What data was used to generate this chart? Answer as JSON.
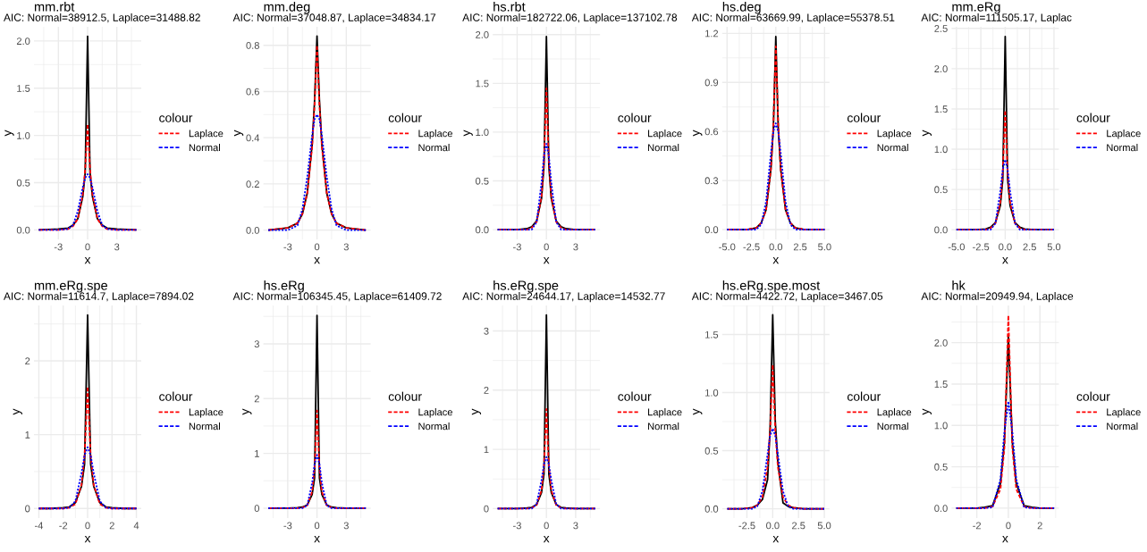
{
  "chart_data": [
    {
      "type": "line",
      "title": "mm.rbt",
      "subtitle": "AIC: Normal=38912.5, Laplace=31488.82",
      "xlabel": "x",
      "ylabel": "y",
      "legend": "right",
      "legend_title": "colour",
      "grid": true,
      "xlim": [
        -5.5,
        5.5
      ],
      "ylim": [
        -0.1,
        2.15
      ],
      "xticks": [
        -3,
        0,
        3
      ],
      "yticks": [
        {
          "value": 0,
          "label": "0.0"
        },
        {
          "value": 0.5,
          "label": "0.5"
        },
        {
          "value": 1,
          "label": "1.0"
        },
        {
          "value": 1.5,
          "label": "1.5"
        },
        {
          "value": 2,
          "label": "2.0"
        }
      ],
      "x": [
        -5,
        -3,
        -2,
        -1.5,
        -1,
        -0.5,
        -0.25,
        0,
        0.25,
        0.5,
        1,
        1.5,
        2,
        3,
        5
      ],
      "series": [
        {
          "color": "#000000",
          "line_style": "solid",
          "values": [
            0,
            0.01,
            0.02,
            0.05,
            0.12,
            0.35,
            0.6,
            2.05,
            0.6,
            0.35,
            0.12,
            0.05,
            0.02,
            0.01,
            0
          ]
        },
        {
          "name": "Laplace",
          "color": "#ff0000",
          "line_style": "dashed",
          "values": [
            0,
            0,
            0.01,
            0.04,
            0.12,
            0.37,
            0.64,
            1.12,
            0.64,
            0.37,
            0.12,
            0.04,
            0.01,
            0,
            0
          ]
        },
        {
          "name": "Normal",
          "color": "#0000ff",
          "line_style": "dashed",
          "values": [
            0,
            0,
            0.01,
            0.05,
            0.2,
            0.45,
            0.55,
            0.59,
            0.55,
            0.45,
            0.2,
            0.05,
            0.01,
            0,
            0
          ]
        }
      ]
    },
    {
      "type": "line",
      "title": "mm.deg",
      "subtitle": "AIC: Normal=37048.87, Laplace=34834.17",
      "xlabel": "x",
      "ylabel": "y",
      "legend": "right",
      "legend_title": "colour",
      "grid": true,
      "xlim": [
        -5.5,
        5.5
      ],
      "ylim": [
        -0.04,
        0.88
      ],
      "xticks": [
        -3,
        0,
        3
      ],
      "yticks": [
        {
          "value": 0,
          "label": "0.0"
        },
        {
          "value": 0.2,
          "label": "0.2"
        },
        {
          "value": 0.4,
          "label": "0.4"
        },
        {
          "value": 0.6,
          "label": "0.6"
        },
        {
          "value": 0.8,
          "label": "0.8"
        }
      ],
      "x": [
        -5,
        -3,
        -2,
        -1.5,
        -1,
        -0.5,
        -0.25,
        0,
        0.25,
        0.5,
        1,
        1.5,
        2,
        3,
        5
      ],
      "series": [
        {
          "color": "#000000",
          "line_style": "solid",
          "values": [
            0,
            0.01,
            0.03,
            0.07,
            0.16,
            0.37,
            0.56,
            0.84,
            0.56,
            0.37,
            0.16,
            0.07,
            0.03,
            0.01,
            0
          ]
        },
        {
          "name": "Laplace",
          "color": "#ff0000",
          "line_style": "dashed",
          "values": [
            0,
            0.01,
            0.03,
            0.07,
            0.16,
            0.36,
            0.54,
            0.8,
            0.54,
            0.36,
            0.16,
            0.07,
            0.03,
            0.01,
            0
          ]
        },
        {
          "name": "Normal",
          "color": "#0000ff",
          "line_style": "dashed",
          "values": [
            0,
            0,
            0.02,
            0.09,
            0.23,
            0.41,
            0.48,
            0.5,
            0.48,
            0.41,
            0.23,
            0.09,
            0.02,
            0,
            0
          ]
        }
      ]
    },
    {
      "type": "line",
      "title": "hs.rbt",
      "subtitle": "AIC: Normal=182722.06, Laplace=137102.78",
      "xlabel": "x",
      "ylabel": "y",
      "legend": "right",
      "legend_title": "colour",
      "grid": true,
      "xlim": [
        -5.5,
        5.5
      ],
      "ylim": [
        -0.1,
        2.08
      ],
      "xticks": [
        -3,
        0,
        3
      ],
      "yticks": [
        {
          "value": 0,
          "label": "0.0"
        },
        {
          "value": 0.5,
          "label": "0.5"
        },
        {
          "value": 1,
          "label": "1.0"
        },
        {
          "value": 1.5,
          "label": "1.5"
        },
        {
          "value": 2,
          "label": "2.0"
        }
      ],
      "x": [
        -5,
        -3,
        -2,
        -1.5,
        -1,
        -0.5,
        -0.25,
        0,
        0.25,
        0.5,
        1,
        1.5,
        2,
        3,
        5
      ],
      "series": [
        {
          "color": "#000000",
          "line_style": "solid",
          "values": [
            0,
            0,
            0.01,
            0.03,
            0.09,
            0.32,
            0.65,
            1.98,
            0.65,
            0.32,
            0.09,
            0.03,
            0.01,
            0,
            0
          ]
        },
        {
          "name": "Laplace",
          "color": "#ff0000",
          "line_style": "dashed",
          "values": [
            0,
            0,
            0,
            0.02,
            0.08,
            0.34,
            0.7,
            1.45,
            0.7,
            0.34,
            0.08,
            0.02,
            0,
            0,
            0
          ]
        },
        {
          "name": "Normal",
          "color": "#0000ff",
          "line_style": "dashed",
          "values": [
            0,
            0,
            0,
            0,
            0.08,
            0.48,
            0.76,
            0.88,
            0.76,
            0.48,
            0.08,
            0,
            0,
            0,
            0
          ]
        }
      ]
    },
    {
      "type": "line",
      "title": "hs.deg",
      "subtitle": "AIC: Normal=63669.99, Laplace=55378.51",
      "xlabel": "x",
      "ylabel": "y",
      "legend": "right",
      "legend_title": "colour",
      "grid": true,
      "xlim": [
        -5.5,
        5.5
      ],
      "ylim": [
        -0.06,
        1.24
      ],
      "xticks": [
        {
          "value": -5,
          "label": "-5.0"
        },
        -2.5,
        {
          "value": 0,
          "label": "0.0"
        },
        2.5,
        {
          "value": 5,
          "label": "5.0"
        }
      ],
      "yticks": [
        {
          "value": 0,
          "label": "0.0"
        },
        0.3,
        0.6,
        0.9,
        1.2
      ],
      "x": [
        -5,
        -3,
        -2,
        -1.5,
        -1,
        -0.5,
        -0.25,
        0,
        0.25,
        0.5,
        1,
        1.5,
        2,
        3,
        5
      ],
      "series": [
        {
          "color": "#000000",
          "line_style": "solid",
          "values": [
            0,
            0,
            0.01,
            0.04,
            0.12,
            0.37,
            0.62,
            1.18,
            0.62,
            0.37,
            0.12,
            0.04,
            0.01,
            0,
            0
          ]
        },
        {
          "name": "Laplace",
          "color": "#ff0000",
          "line_style": "dashed",
          "values": [
            0,
            0,
            0.01,
            0.04,
            0.12,
            0.37,
            0.64,
            1.12,
            0.64,
            0.37,
            0.12,
            0.04,
            0.01,
            0,
            0
          ]
        },
        {
          "name": "Normal",
          "color": "#0000ff",
          "line_style": "dashed",
          "values": [
            0,
            0,
            0,
            0.03,
            0.17,
            0.47,
            0.6,
            0.65,
            0.6,
            0.47,
            0.17,
            0.03,
            0,
            0,
            0
          ]
        }
      ]
    },
    {
      "type": "line",
      "title": "mm.eRg",
      "subtitle": "AIC: Normal=111505.17, Laplac",
      "xlabel": "x",
      "ylabel": "y",
      "legend": "right",
      "legend_title": "colour",
      "grid": true,
      "xlim": [
        -5.5,
        5.5
      ],
      "ylim": [
        -0.12,
        2.52
      ],
      "xticks": [
        {
          "value": -5,
          "label": "-5.0"
        },
        -2.5,
        {
          "value": 0,
          "label": "0.0"
        },
        2.5,
        {
          "value": 5,
          "label": "5.0"
        }
      ],
      "yticks": [
        {
          "value": 0,
          "label": "0.0"
        },
        {
          "value": 0.5,
          "label": "0.5"
        },
        {
          "value": 1,
          "label": "1.0"
        },
        {
          "value": 1.5,
          "label": "1.5"
        },
        {
          "value": 2,
          "label": "2.0"
        },
        {
          "value": 2.5,
          "label": "2.5"
        }
      ],
      "x": [
        -5,
        -3,
        -2,
        -1.5,
        -1,
        -0.5,
        -0.25,
        0,
        0.25,
        0.5,
        1,
        1.5,
        2,
        3,
        5
      ],
      "series": [
        {
          "color": "#000000",
          "line_style": "solid",
          "values": [
            0,
            0,
            0.01,
            0.03,
            0.09,
            0.3,
            0.62,
            2.4,
            0.62,
            0.3,
            0.09,
            0.03,
            0.01,
            0,
            0
          ]
        },
        {
          "name": "Laplace",
          "color": "#ff0000",
          "line_style": "dashed",
          "values": [
            0,
            0,
            0,
            0.02,
            0.08,
            0.34,
            0.71,
            1.48,
            0.71,
            0.34,
            0.08,
            0.02,
            0,
            0,
            0
          ]
        },
        {
          "name": "Normal",
          "color": "#0000ff",
          "line_style": "dashed",
          "values": [
            0,
            0,
            0,
            0,
            0.08,
            0.48,
            0.75,
            0.87,
            0.75,
            0.48,
            0.08,
            0,
            0,
            0,
            0
          ]
        }
      ]
    },
    {
      "type": "line",
      "title": "mm.eRg.spe",
      "subtitle": "AIC: Normal=11614.7, Laplace=7894.02",
      "xlabel": "x",
      "ylabel": "y",
      "legend": "right",
      "legend_title": "colour",
      "grid": true,
      "xlim": [
        -4.4,
        4.4
      ],
      "ylim": [
        -0.13,
        2.75
      ],
      "xticks": [
        -4,
        -2,
        0,
        2,
        4
      ],
      "yticks": [
        0,
        1,
        2
      ],
      "x": [
        -4,
        -3,
        -2,
        -1.5,
        -1,
        -0.5,
        -0.25,
        0,
        0.25,
        0.5,
        1,
        1.5,
        2,
        3,
        4
      ],
      "series": [
        {
          "color": "#000000",
          "line_style": "solid",
          "values": [
            0,
            0,
            0.01,
            0.02,
            0.08,
            0.3,
            0.6,
            2.62,
            0.6,
            0.3,
            0.08,
            0.02,
            0.01,
            0,
            0
          ]
        },
        {
          "name": "Laplace",
          "color": "#ff0000",
          "line_style": "dashed",
          "values": [
            0,
            0,
            0,
            0.01,
            0.06,
            0.32,
            0.72,
            1.65,
            0.72,
            0.32,
            0.06,
            0.01,
            0,
            0,
            0
          ]
        },
        {
          "name": "Normal",
          "color": "#0000ff",
          "line_style": "dashed",
          "values": [
            0,
            0,
            0,
            0.01,
            0.1,
            0.48,
            0.72,
            0.83,
            0.72,
            0.48,
            0.1,
            0.01,
            0,
            0,
            0
          ]
        }
      ]
    },
    {
      "type": "line",
      "title": "hs.eRg",
      "subtitle": "AIC: Normal=106345.45, Laplace=61409.72",
      "xlabel": "x",
      "ylabel": "y",
      "legend": "right",
      "legend_title": "colour",
      "grid": true,
      "xlim": [
        -5.5,
        5.5
      ],
      "ylim": [
        -0.18,
        3.7
      ],
      "xticks": [
        -3,
        0,
        3
      ],
      "yticks": [
        0,
        1,
        2,
        3
      ],
      "x": [
        -5,
        -3,
        -2,
        -1.5,
        -1,
        -0.5,
        -0.25,
        0,
        0.25,
        0.5,
        1,
        1.5,
        2,
        3,
        5
      ],
      "series": [
        {
          "color": "#000000",
          "line_style": "solid",
          "values": [
            0,
            0,
            0.01,
            0.02,
            0.06,
            0.25,
            0.55,
            3.52,
            0.55,
            0.25,
            0.06,
            0.02,
            0.01,
            0,
            0
          ]
        },
        {
          "name": "Laplace",
          "color": "#ff0000",
          "line_style": "dashed",
          "values": [
            0,
            0,
            0,
            0.01,
            0.05,
            0.3,
            0.73,
            1.78,
            0.73,
            0.3,
            0.05,
            0.01,
            0,
            0,
            0
          ]
        },
        {
          "name": "Normal",
          "color": "#0000ff",
          "line_style": "dashed",
          "values": [
            0,
            0,
            0,
            0,
            0.05,
            0.46,
            0.81,
            0.97,
            0.81,
            0.46,
            0.05,
            0,
            0,
            0,
            0
          ]
        }
      ]
    },
    {
      "type": "line",
      "title": "hs.eRg.spe",
      "subtitle": "AIC: Normal=24644.17, Laplace=14532.77",
      "xlabel": "x",
      "ylabel": "y",
      "legend": "right",
      "legend_title": "colour",
      "grid": true,
      "xlim": [
        -5.5,
        5.5
      ],
      "ylim": [
        -0.16,
        3.43
      ],
      "xticks": [
        -3,
        0,
        3
      ],
      "yticks": [
        0,
        1,
        2,
        3
      ],
      "x": [
        -5,
        -3,
        -2,
        -1.5,
        -1,
        -0.5,
        -0.25,
        0,
        0.25,
        0.5,
        1,
        1.5,
        2,
        3,
        5
      ],
      "series": [
        {
          "color": "#000000",
          "line_style": "solid",
          "values": [
            0,
            0,
            0.01,
            0.02,
            0.07,
            0.27,
            0.58,
            3.27,
            0.58,
            0.27,
            0.07,
            0.02,
            0.01,
            0,
            0
          ]
        },
        {
          "name": "Laplace",
          "color": "#ff0000",
          "line_style": "dashed",
          "values": [
            0,
            0,
            0,
            0.01,
            0.06,
            0.31,
            0.73,
            1.68,
            0.73,
            0.31,
            0.06,
            0.01,
            0,
            0,
            0
          ]
        },
        {
          "name": "Normal",
          "color": "#0000ff",
          "line_style": "dashed",
          "values": [
            0,
            0,
            0,
            0,
            0.08,
            0.48,
            0.75,
            0.87,
            0.75,
            0.48,
            0.08,
            0,
            0,
            0,
            0
          ]
        }
      ]
    },
    {
      "type": "line",
      "title": "hs.eRg.spe.most",
      "subtitle": "AIC: Normal=4422.72, Laplace=3467.05",
      "xlabel": "x",
      "ylabel": "y",
      "legend": "right",
      "legend_title": "colour",
      "grid": true,
      "xlim": [
        -4.9,
        5.5
      ],
      "ylim": [
        -0.08,
        1.75
      ],
      "xticks": [
        -2.5,
        {
          "value": 0,
          "label": "0.0"
        },
        2.5,
        {
          "value": 5,
          "label": "5.0"
        }
      ],
      "yticks": [
        {
          "value": 0,
          "label": "0.0"
        },
        {
          "value": 0.5,
          "label": "0.5"
        },
        {
          "value": 1,
          "label": "1.0"
        },
        {
          "value": 1.5,
          "label": "1.5"
        }
      ],
      "x": [
        -4.4,
        -3,
        -2,
        -1.5,
        -1,
        -0.5,
        -0.25,
        0,
        0.25,
        0.5,
        1,
        1.5,
        2,
        3,
        5
      ],
      "series": [
        {
          "color": "#000000",
          "line_style": "solid",
          "values": [
            0,
            0,
            0.01,
            0.03,
            0.08,
            0.25,
            0.7,
            1.67,
            0.75,
            0.4,
            0.05,
            0.02,
            0.01,
            0,
            0
          ]
        },
        {
          "name": "Laplace",
          "color": "#ff0000",
          "line_style": "dashed",
          "values": [
            0,
            0,
            0.01,
            0.03,
            0.1,
            0.36,
            0.67,
            1.24,
            0.67,
            0.36,
            0.1,
            0.03,
            0.01,
            0,
            0
          ]
        },
        {
          "name": "Normal",
          "color": "#0000ff",
          "line_style": "dashed",
          "values": [
            0,
            0,
            0,
            0.02,
            0.15,
            0.47,
            0.63,
            0.69,
            0.63,
            0.47,
            0.15,
            0.02,
            0,
            0,
            0
          ]
        }
      ]
    },
    {
      "type": "line",
      "title": "hk",
      "subtitle": "AIC: Normal=20949.94, Laplace",
      "xlabel": "x",
      "ylabel": "y",
      "legend": "right",
      "legend_title": "colour",
      "grid": true,
      "xlim": [
        -3.6,
        3.2
      ],
      "ylim": [
        -0.12,
        2.45
      ],
      "xticks": [
        -2,
        0,
        2
      ],
      "yticks": [
        {
          "value": 0,
          "label": "0.0"
        },
        {
          "value": 0.5,
          "label": "0.5"
        },
        {
          "value": 1,
          "label": "1.0"
        },
        {
          "value": 1.5,
          "label": "1.5"
        },
        {
          "value": 2,
          "label": "2.0"
        }
      ],
      "x": [
        -3.3,
        -2,
        -1.5,
        -1,
        -0.5,
        -0.25,
        0,
        0.25,
        0.5,
        1,
        1.5,
        2,
        2.9
      ],
      "series": [
        {
          "color": "#000000",
          "line_style": "solid",
          "values": [
            0,
            0,
            0.01,
            0.03,
            0.3,
            0.8,
            2.07,
            0.8,
            0.3,
            0.03,
            0.01,
            0,
            0
          ]
        },
        {
          "name": "Laplace",
          "color": "#ff0000",
          "line_style": "dashed",
          "values": [
            0,
            0,
            0,
            0.02,
            0.23,
            0.73,
            2.33,
            0.73,
            0.23,
            0.02,
            0,
            0,
            0
          ]
        },
        {
          "name": "Normal",
          "color": "#0000ff",
          "line_style": "dashed",
          "values": [
            0,
            0,
            0,
            0.01,
            0.35,
            0.93,
            1.29,
            0.93,
            0.35,
            0.01,
            0,
            0,
            0
          ]
        }
      ]
    }
  ]
}
